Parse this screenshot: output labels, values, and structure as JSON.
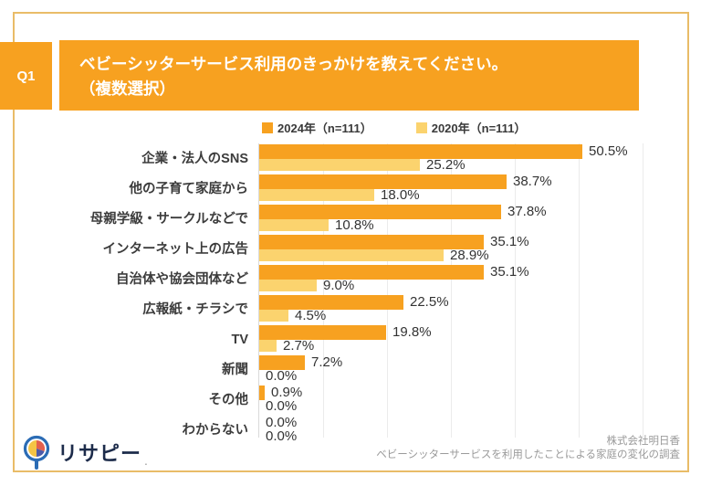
{
  "header": {
    "q_label": "Q1",
    "title_line1": "ベビーシッターサービス利用のきっかけを教えてください。",
    "title_line2": "（複数選択）"
  },
  "footer": {
    "logo_text": "リサピー",
    "logo_mark": ".",
    "source_line1": "株式会社明日香",
    "source_line2": "ベビーシッターサービスを利用したことによる家庭の変化の調査"
  },
  "colors": {
    "accent_orange": "#f7a120",
    "light_yellow": "#fbd36e",
    "frame_border": "#e9bc68",
    "logo_navy": "#1c2b4a"
  },
  "chart_data": {
    "type": "bar",
    "orientation": "horizontal",
    "title": "ベビーシッターサービス利用のきっかけを教えてください。（複数選択）",
    "categories": [
      "企業・法人のSNS",
      "他の子育て家庭から",
      "母親学級・サークルなどで",
      "インターネット上の広告",
      "自治体や協会団体など",
      "広報紙・チラシで",
      "TV",
      "新聞",
      "その他",
      "わからない"
    ],
    "series": [
      {
        "name": "2024年（n=111）",
        "color": "#f7a120",
        "values": [
          50.5,
          38.7,
          37.8,
          35.1,
          35.1,
          22.5,
          19.8,
          7.2,
          0.9,
          0.0
        ]
      },
      {
        "name": "2020年（n=111）",
        "color": "#fbd36e",
        "values": [
          25.2,
          18.0,
          10.8,
          28.9,
          9.0,
          4.5,
          2.7,
          0.0,
          0.0,
          0.0
        ]
      }
    ],
    "xlim": [
      0,
      60
    ],
    "gridline_step": 10,
    "value_suffix": "%",
    "grid": true,
    "legend_position": "top"
  }
}
